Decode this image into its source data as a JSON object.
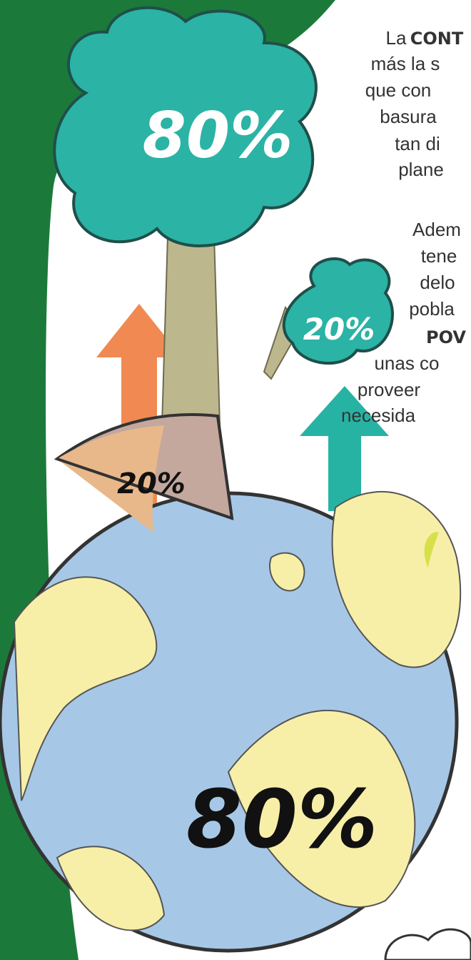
{
  "text_block": {
    "lines": [
      "La",
      "CONT",
      "más la s",
      "que con",
      "basura",
      "tan di",
      "plane",
      "Adem",
      "tene",
      "delo",
      "pobla",
      "POV",
      "unas co",
      "proveer",
      "necesida"
    ]
  },
  "tree": {
    "large_label": "80%",
    "small_label": "20%"
  },
  "globe": {
    "slice_label": "20%",
    "main_label": "80%"
  }
}
